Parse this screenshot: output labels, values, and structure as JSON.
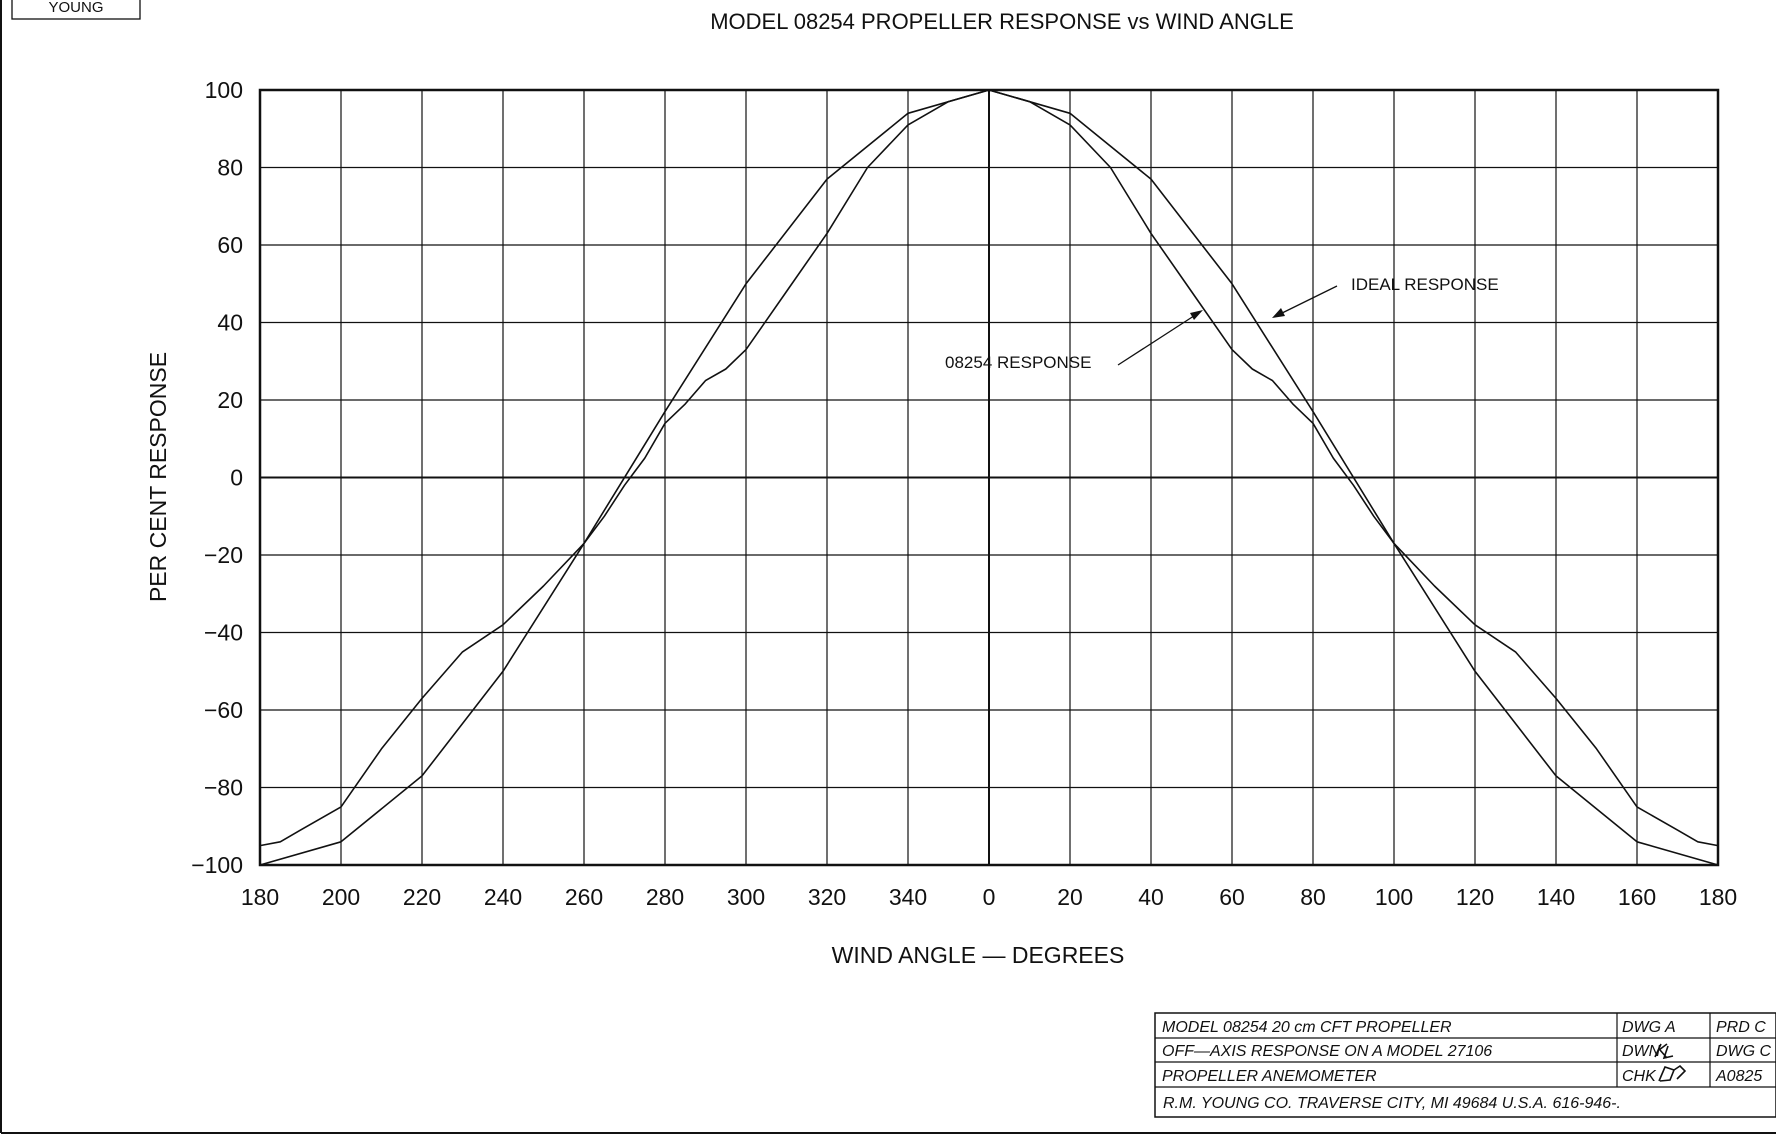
{
  "logo": {
    "text": "YOUNG"
  },
  "chart_data": {
    "type": "line",
    "title": "MODEL 08254 PROPELLER RESPONSE vs WIND ANGLE",
    "xlabel": "WIND ANGLE — DEGREES",
    "ylabel": "PER CENT RESPONSE",
    "x_tick_labels": [
      "180",
      "200",
      "220",
      "240",
      "260",
      "280",
      "300",
      "320",
      "340",
      "0",
      "20",
      "40",
      "60",
      "80",
      "100",
      "120",
      "140",
      "160",
      "180"
    ],
    "x_domain": [
      -180,
      180
    ],
    "y_ticks": [
      100,
      80,
      60,
      40,
      20,
      0,
      -20,
      -40,
      -60,
      -80,
      -100
    ],
    "ylim": [
      -100,
      100
    ],
    "grid": true,
    "annotations": [
      {
        "text": "IDEAL RESPONSE",
        "target": "ideal"
      },
      {
        "text": "08254 RESPONSE",
        "target": "measured"
      }
    ],
    "series": [
      {
        "name": "IDEAL RESPONSE",
        "key": "ideal",
        "x": [
          -180,
          -160,
          -140,
          -120,
          -100,
          -80,
          -60,
          -40,
          -20,
          0,
          20,
          40,
          60,
          80,
          100,
          120,
          140,
          160,
          180
        ],
        "values": [
          -100,
          -94,
          -77,
          -50,
          -17,
          17,
          50,
          77,
          94,
          100,
          94,
          77,
          50,
          17,
          -17,
          -50,
          -77,
          -94,
          -100
        ]
      },
      {
        "name": "08254 RESPONSE",
        "key": "measured",
        "x": [
          -180,
          -175,
          -170,
          -160,
          -150,
          -140,
          -130,
          -120,
          -110,
          -100,
          -95,
          -90,
          -85,
          -80,
          -75,
          -70,
          -65,
          -60,
          -50,
          -40,
          -30,
          -20,
          -10,
          0,
          10,
          20,
          30,
          40,
          50,
          60,
          65,
          70,
          75,
          80,
          85,
          90,
          95,
          100,
          110,
          120,
          130,
          140,
          150,
          160,
          170,
          175,
          180
        ],
        "values": [
          -95,
          -94,
          -91,
          -85,
          -70,
          -57,
          -45,
          -38,
          -28,
          -17,
          -10,
          -2,
          5,
          14,
          19,
          25,
          28,
          33,
          48,
          63,
          80,
          91,
          97,
          100,
          97,
          91,
          80,
          63,
          48,
          33,
          28,
          25,
          19,
          14,
          5,
          -2,
          -10,
          -17,
          -28,
          -38,
          -45,
          -57,
          -70,
          -85,
          -91,
          -94,
          -95
        ]
      }
    ]
  },
  "title_block": {
    "rows": [
      {
        "desc": "MODEL 08254 20 cm CFT PROPELLER",
        "c1": "DWG A",
        "c2": "PRD C"
      },
      {
        "desc": "OFF—AXIS RESPONSE ON A MODEL 27106",
        "c1": "DWN",
        "c2": "DWG C"
      },
      {
        "desc": "PROPELLER ANEMOMETER",
        "c1": "CHK",
        "c2": "A0825"
      }
    ],
    "footer": "R.M. YOUNG CO. TRAVERSE CITY, MI 49684 U.S.A. 616-946-."
  }
}
